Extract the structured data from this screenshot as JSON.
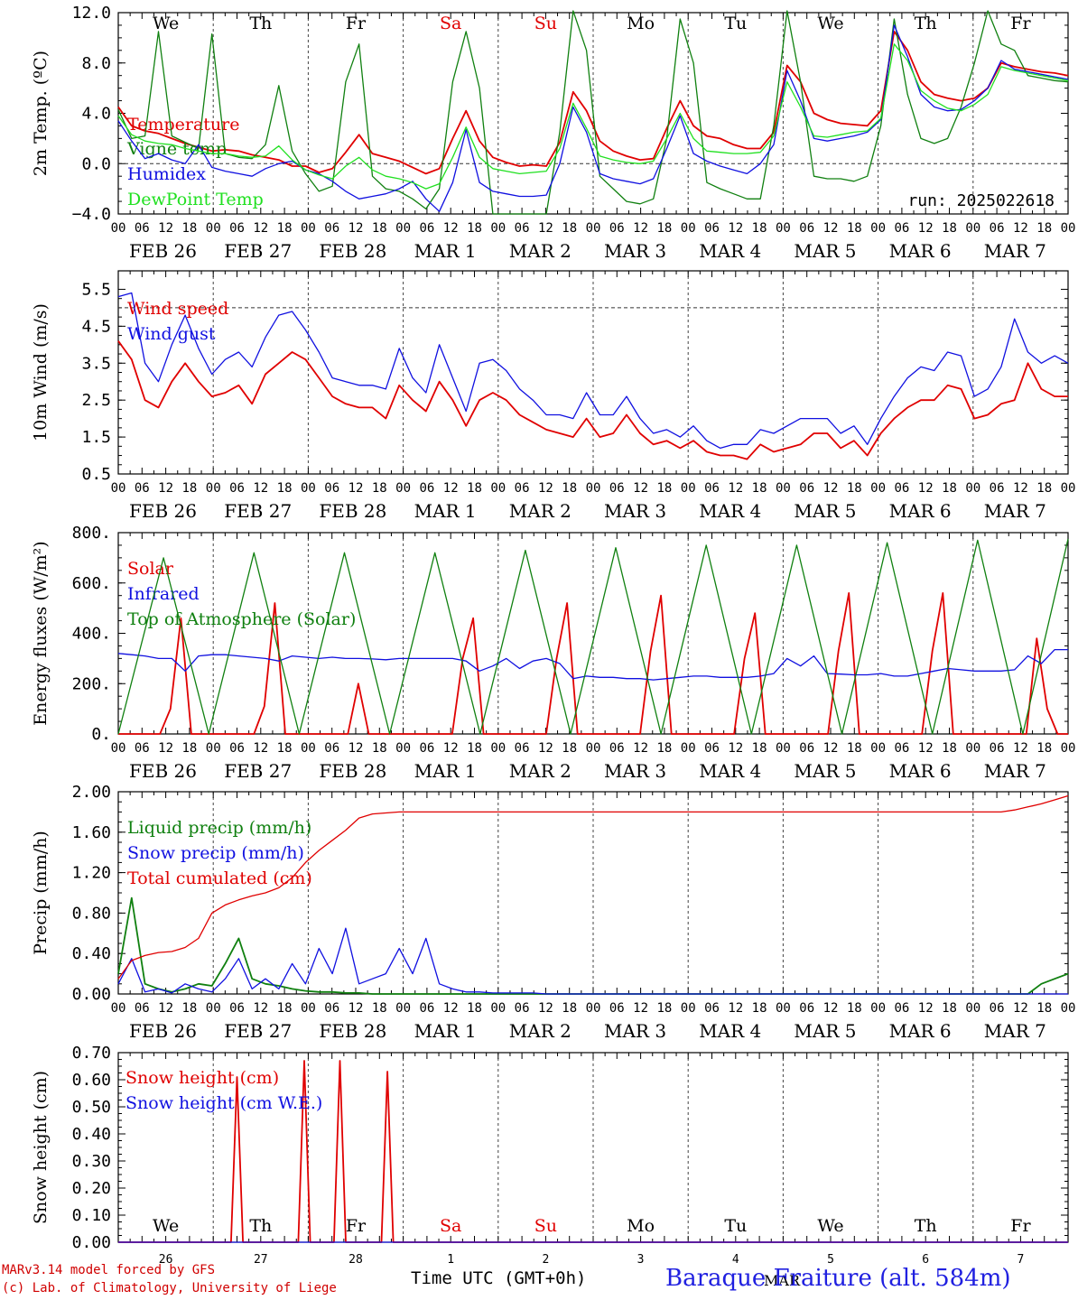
{
  "days": {
    "names": [
      "We",
      "Th",
      "Fr",
      "Sa",
      "Su",
      "Mo",
      "Tu",
      "We",
      "Th",
      "Fr"
    ],
    "name_colors": [
      "#000000",
      "#000000",
      "#000000",
      "#e00000",
      "#e00000",
      "#000000",
      "#000000",
      "#000000",
      "#000000",
      "#000000"
    ],
    "date_labels": [
      "FEB 26",
      "FEB 27",
      "FEB 28",
      "MAR  1",
      "MAR  2",
      "MAR  3",
      "MAR  4",
      "MAR  5",
      "MAR  6",
      "MAR  7"
    ],
    "day_numbers": [
      "26",
      "27",
      "28",
      "1",
      "2",
      "3",
      "4",
      "5",
      "6",
      "7"
    ],
    "hour_ticks": [
      "00",
      "06",
      "12",
      "18"
    ],
    "month_label": "MAR"
  },
  "footer": {
    "model_line": "MARv3.14 model forced by GFS",
    "credit_line": "(c) Lab. of Climatology, University of Liege",
    "time_axis": "Time UTC (GMT+0h)",
    "station": "Baraque Fraiture (alt. 584m)"
  },
  "colors": {
    "red": "#e00000",
    "blue": "#1010e0",
    "darkgreen": "#108010",
    "lightgreen": "#20e020"
  },
  "chart_data": [
    {
      "type": "line",
      "ylabel": "2m Temp. (ºC)",
      "ylim": [
        -4,
        12
      ],
      "yticks": [
        "12.0",
        "8.0",
        "4.0",
        "0.0",
        "−4.0"
      ],
      "reference_line": 0,
      "annotation": "run: 2025022618",
      "x_unit": "hours since Feb 26 00 UTC, 6-hourly",
      "series": [
        {
          "name": "Temperature",
          "color": "#e00000",
          "values": [
            4.5,
            3.0,
            2.6,
            2.4,
            2.0,
            1.6,
            1.3,
            1.0,
            1.1,
            1.0,
            0.7,
            0.5,
            0.3,
            -0.2,
            -0.2,
            -0.7,
            -0.4,
            0.9,
            2.3,
            0.8,
            0.5,
            0.2,
            -0.3,
            -0.8,
            -0.4,
            2.0,
            4.2,
            1.8,
            0.5,
            0.1,
            -0.2,
            -0.1,
            -0.2,
            1.7,
            5.7,
            4.2,
            1.8,
            1.0,
            0.6,
            0.3,
            0.4,
            2.8,
            5.0,
            3.0,
            2.2,
            2.0,
            1.5,
            1.2,
            1.2,
            2.5,
            7.8,
            6.5,
            4.0,
            3.5,
            3.2,
            3.1,
            3.0,
            4.2,
            10.5,
            9.0,
            6.5,
            5.5,
            5.2,
            5.0,
            5.2,
            6.0,
            8.0,
            7.7,
            7.5,
            7.3,
            7.2,
            7.0
          ]
        },
        {
          "name": "Vigne temp",
          "color": "#108010",
          "values": [
            4.3,
            2.0,
            2.2,
            10.5,
            2.2,
            1.7,
            1.2,
            10.3,
            0.8,
            0.5,
            0.4,
            1.5,
            6.2,
            1.0,
            -0.8,
            -2.2,
            -1.8,
            6.5,
            9.5,
            -1.0,
            -2.0,
            -2.2,
            -2.8,
            -3.6,
            -2.0,
            6.5,
            10.5,
            6.0,
            -4.0,
            -4.0,
            -4.0,
            -4.0,
            -4.0,
            2.5,
            13.0,
            9.0,
            -1.0,
            -2.0,
            -3.0,
            -3.2,
            -2.8,
            2.0,
            11.5,
            8.0,
            -1.5,
            -2.0,
            -2.4,
            -2.8,
            -2.8,
            3.0,
            13.0,
            6.5,
            -1.0,
            -1.2,
            -1.2,
            -1.4,
            -1.0,
            3.0,
            11.5,
            5.5,
            2.0,
            1.6,
            2.0,
            4.5,
            8.0,
            13.0,
            9.5,
            9.0,
            7.0,
            6.8,
            6.6,
            6.5
          ]
        },
        {
          "name": "Humidex",
          "color": "#1010e0",
          "values": [
            3.4,
            1.8,
            0.4,
            0.8,
            0.3,
            0.0,
            1.5,
            -0.3,
            -0.6,
            -0.8,
            -1.0,
            -0.4,
            0.0,
            0.2,
            -0.5,
            -0.8,
            -1.4,
            -2.2,
            -2.8,
            -2.6,
            -2.4,
            -2.0,
            -1.4,
            -2.8,
            -3.8,
            -1.5,
            2.7,
            -1.5,
            -2.2,
            -2.4,
            -2.6,
            -2.6,
            -2.5,
            0.0,
            4.5,
            2.5,
            -0.8,
            -1.2,
            -1.4,
            -1.6,
            -1.2,
            1.2,
            3.8,
            0.8,
            0.2,
            -0.2,
            -0.5,
            -0.8,
            0.0,
            1.5,
            7.4,
            5.0,
            2.0,
            1.8,
            2.0,
            2.2,
            2.5,
            3.5,
            11.0,
            8.5,
            5.5,
            4.5,
            4.2,
            4.3,
            5.0,
            6.0,
            8.2,
            7.5,
            7.3,
            7.1,
            6.9,
            6.7
          ]
        },
        {
          "name": "DewPoint Temp",
          "color": "#20e020",
          "values": [
            3.8,
            2.3,
            1.8,
            1.6,
            1.5,
            1.2,
            1.0,
            0.8,
            0.8,
            0.6,
            0.5,
            0.6,
            1.4,
            0.3,
            -0.5,
            -0.9,
            -1.2,
            -0.2,
            0.5,
            -0.5,
            -1.0,
            -1.2,
            -1.5,
            -2.0,
            -1.6,
            0.5,
            2.9,
            0.5,
            -0.4,
            -0.6,
            -0.8,
            -0.7,
            -0.6,
            1.2,
            4.8,
            2.8,
            0.6,
            0.3,
            0.1,
            0.0,
            0.2,
            2.0,
            4.0,
            2.0,
            1.0,
            0.9,
            0.8,
            0.8,
            0.9,
            2.2,
            6.5,
            4.5,
            2.2,
            2.1,
            2.3,
            2.5,
            2.6,
            3.6,
            9.5,
            8.2,
            5.8,
            5.0,
            4.4,
            4.2,
            4.7,
            5.5,
            7.7,
            7.4,
            7.2,
            7.0,
            6.8,
            6.6
          ]
        }
      ]
    },
    {
      "type": "line",
      "ylabel": "10m Wind (m/s)",
      "ylim": [
        0.5,
        6.0
      ],
      "yticks": [
        "5.5",
        "4.5",
        "3.5",
        "2.5",
        "1.5",
        "0.5"
      ],
      "reference_line": 5,
      "series": [
        {
          "name": "Wind speed",
          "color": "#e00000",
          "values": [
            4.1,
            3.6,
            2.5,
            2.3,
            3.0,
            3.5,
            3.0,
            2.6,
            2.7,
            2.9,
            2.4,
            3.2,
            3.5,
            3.8,
            3.6,
            3.1,
            2.6,
            2.4,
            2.3,
            2.3,
            2.0,
            2.9,
            2.5,
            2.2,
            3.0,
            2.5,
            1.8,
            2.5,
            2.7,
            2.5,
            2.1,
            1.9,
            1.7,
            1.6,
            1.5,
            2.0,
            1.5,
            1.6,
            2.1,
            1.6,
            1.3,
            1.4,
            1.2,
            1.4,
            1.1,
            1.0,
            1.0,
            0.9,
            1.3,
            1.1,
            1.2,
            1.3,
            1.6,
            1.6,
            1.2,
            1.4,
            1.0,
            1.6,
            2.0,
            2.3,
            2.5,
            2.5,
            2.9,
            2.8,
            2.0,
            2.1,
            2.4,
            2.5,
            3.5,
            2.8,
            2.6,
            2.6
          ]
        },
        {
          "name": "Wind gust",
          "color": "#1010e0",
          "values": [
            5.3,
            5.4,
            3.5,
            3.0,
            4.0,
            4.8,
            3.9,
            3.2,
            3.6,
            3.8,
            3.4,
            4.2,
            4.8,
            4.9,
            4.4,
            3.8,
            3.1,
            3.0,
            2.9,
            2.9,
            2.8,
            3.9,
            3.1,
            2.7,
            4.0,
            3.1,
            2.2,
            3.5,
            3.6,
            3.3,
            2.8,
            2.5,
            2.1,
            2.1,
            2.0,
            2.7,
            2.1,
            2.1,
            2.6,
            2.0,
            1.6,
            1.7,
            1.5,
            1.8,
            1.4,
            1.2,
            1.3,
            1.3,
            1.7,
            1.6,
            1.8,
            2.0,
            2.0,
            2.0,
            1.6,
            1.8,
            1.3,
            2.0,
            2.6,
            3.1,
            3.4,
            3.3,
            3.8,
            3.7,
            2.6,
            2.8,
            3.4,
            4.7,
            3.8,
            3.5,
            3.7,
            3.5
          ]
        }
      ]
    },
    {
      "type": "line",
      "ylabel": "Energy fluxes (W/m²)",
      "ylim": [
        0,
        800
      ],
      "yticks": [
        "800.",
        "600.",
        "400.",
        "200.",
        "0."
      ],
      "series": [
        {
          "name": "Solar",
          "color": "#e00000",
          "values": [
            0,
            0,
            0,
            0,
            0,
            100,
            460,
            0,
            0,
            0,
            0,
            0,
            0,
            0,
            110,
            520,
            0,
            0,
            0,
            0,
            0,
            0,
            0,
            200,
            0,
            0,
            0,
            0,
            0,
            0,
            0,
            0,
            0,
            300,
            460,
            0,
            0,
            0,
            0,
            0,
            0,
            0,
            300,
            520,
            0,
            0,
            0,
            0,
            0,
            0,
            0,
            330,
            550,
            0,
            0,
            0,
            0,
            0,
            0,
            0,
            300,
            480,
            0,
            0,
            0,
            0,
            0,
            0,
            0,
            330,
            560,
            0,
            0,
            0,
            0,
            0,
            0,
            0,
            330,
            560,
            0,
            0,
            0,
            0,
            0,
            0,
            0,
            0,
            380,
            100,
            0,
            0
          ]
        },
        {
          "name": "Infrared",
          "color": "#1010e0",
          "values": [
            320,
            315,
            310,
            300,
            300,
            250,
            310,
            315,
            315,
            310,
            305,
            300,
            290,
            310,
            305,
            300,
            305,
            300,
            300,
            298,
            295,
            300,
            300,
            300,
            300,
            300,
            290,
            250,
            270,
            300,
            260,
            290,
            300,
            280,
            220,
            230,
            225,
            225,
            220,
            220,
            215,
            220,
            225,
            230,
            230,
            225,
            225,
            225,
            230,
            240,
            300,
            270,
            310,
            240,
            238,
            235,
            235,
            240,
            230,
            230,
            240,
            250,
            260,
            255,
            250,
            250,
            250,
            255,
            310,
            280,
            335,
            335
          ]
        },
        {
          "name": "Top of Atmosphere (Solar)",
          "color": "#108010",
          "values": [
            0,
            700,
            0,
            720,
            0,
            720,
            0,
            720,
            0,
            730,
            0,
            740,
            0,
            750,
            0,
            750,
            0,
            760,
            0,
            770,
            0,
            775
          ]
        }
      ]
    },
    {
      "type": "line",
      "ylabel": "Precip (mm/h)",
      "ylim": [
        0,
        2
      ],
      "yticks": [
        "2.00",
        "1.60",
        "1.20",
        "0.80",
        "0.40",
        "0.00"
      ],
      "series": [
        {
          "name": "Liquid precip (mm/h)",
          "color": "#108010",
          "values": [
            0.2,
            0.95,
            0.1,
            0.05,
            0.02,
            0.05,
            0.1,
            0.08,
            0.3,
            0.55,
            0.15,
            0.1,
            0.08,
            0.05,
            0.03,
            0.02,
            0.02,
            0.01,
            0.01,
            0,
            0,
            0,
            0,
            0,
            0,
            0,
            0,
            0,
            0,
            0,
            0,
            0,
            0,
            0,
            0,
            0,
            0,
            0,
            0,
            0,
            0,
            0,
            0,
            0,
            0,
            0,
            0,
            0,
            0,
            0,
            0,
            0,
            0,
            0,
            0,
            0,
            0,
            0,
            0,
            0,
            0,
            0,
            0,
            0,
            0,
            0,
            0,
            0,
            0,
            0.1,
            0.15,
            0.2
          ]
        },
        {
          "name": "Snow precip (mm/h)",
          "color": "#1010e0",
          "values": [
            0.1,
            0.35,
            0.02,
            0.05,
            0.01,
            0.1,
            0.05,
            0.02,
            0.15,
            0.35,
            0.05,
            0.15,
            0.05,
            0.3,
            0.1,
            0.45,
            0.2,
            0.65,
            0.1,
            0.15,
            0.2,
            0.45,
            0.2,
            0.55,
            0.1,
            0.05,
            0.02,
            0.02,
            0.01,
            0.01,
            0.01,
            0.01,
            0,
            0,
            0,
            0,
            0,
            0,
            0,
            0,
            0,
            0,
            0,
            0,
            0,
            0,
            0,
            0,
            0,
            0,
            0,
            0,
            0,
            0,
            0,
            0,
            0,
            0,
            0,
            0,
            0,
            0,
            0,
            0,
            0,
            0,
            0,
            0,
            0,
            0,
            0,
            0
          ]
        },
        {
          "name": "Total cumulated (cm)",
          "color": "#e00000",
          "values": [
            0.15,
            0.33,
            0.38,
            0.41,
            0.42,
            0.46,
            0.55,
            0.8,
            0.88,
            0.93,
            0.97,
            1.0,
            1.05,
            1.15,
            1.3,
            1.42,
            1.52,
            1.62,
            1.74,
            1.78,
            1.79,
            1.8,
            1.8,
            1.8,
            1.8,
            1.8,
            1.8,
            1.8,
            1.8,
            1.8,
            1.8,
            1.8,
            1.8,
            1.8,
            1.8,
            1.8,
            1.8,
            1.8,
            1.8,
            1.8,
            1.8,
            1.8,
            1.8,
            1.8,
            1.8,
            1.8,
            1.8,
            1.8,
            1.8,
            1.8,
            1.8,
            1.8,
            1.8,
            1.8,
            1.8,
            1.8,
            1.8,
            1.8,
            1.8,
            1.8,
            1.8,
            1.8,
            1.8,
            1.8,
            1.8,
            1.8,
            1.8,
            1.82,
            1.85,
            1.88,
            1.92,
            1.96
          ]
        }
      ]
    },
    {
      "type": "line",
      "ylabel": "Snow height (cm)",
      "ylim": [
        0,
        0.7
      ],
      "yticks": [
        "0.70",
        "0.60",
        "0.50",
        "0.40",
        "0.30",
        "0.20",
        "0.10",
        "0.00"
      ],
      "series": [
        {
          "name": "Snow height (cm)",
          "color": "#e00000",
          "spikes": [
            [
              30,
              0.61
            ],
            [
              47,
              0.67
            ],
            [
              56,
              0.67
            ],
            [
              68,
              0.63
            ]
          ]
        },
        {
          "name": "Snow height (cm W.E.)",
          "color": "#1010e0",
          "spikes": []
        }
      ]
    }
  ]
}
